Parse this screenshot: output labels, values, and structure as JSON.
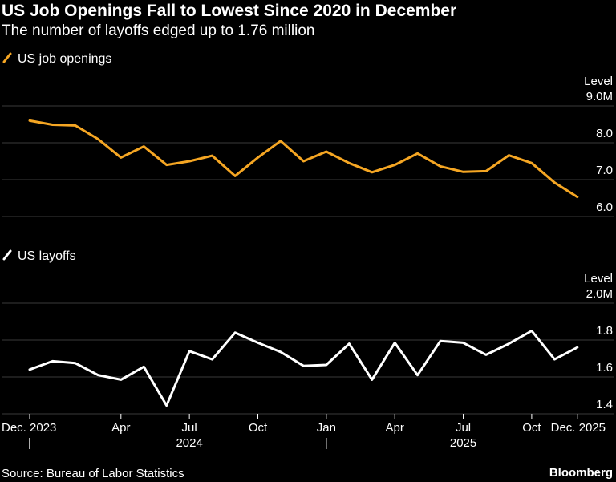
{
  "title": "US Job Openings Fall to Lowest Since 2020 in December",
  "subtitle": "The number of layoffs edged up to 1.76 million",
  "source": "Source: Bureau of Labor Statistics",
  "brand": "Bloomberg",
  "x_axis": {
    "tick_labels": [
      "Dec. 2023",
      "Apr",
      "Jul",
      "Oct",
      "Jan",
      "Apr",
      "Jul",
      "Oct",
      "Dec. 2025"
    ],
    "tick_month_index": [
      0,
      4,
      7,
      10,
      13,
      16,
      19,
      22,
      24
    ],
    "year_labels": [
      "2024",
      "2025"
    ],
    "year_label_month_index": [
      7,
      19
    ],
    "separator_label": "|"
  },
  "colors": {
    "openings": "#f5a623",
    "layoffs": "#ffffff",
    "grid": "#3a3a3a"
  },
  "chart_data": [
    {
      "type": "line",
      "legend": "US job openings",
      "axis_title": "Level",
      "ylim": [
        6.0,
        9.0
      ],
      "y_ticks": [
        9.0,
        8.0,
        7.0,
        6.0
      ],
      "y_tick_labels": [
        "9.0M",
        "8.0",
        "7.0",
        "6.0"
      ],
      "x": [
        "Dec 2023",
        "Jan 2024",
        "Feb 2024",
        "Mar 2024",
        "Apr 2024",
        "May 2024",
        "Jun 2024",
        "Jul 2024",
        "Aug 2024",
        "Sep 2024",
        "Oct 2024",
        "Nov 2024",
        "Dec 2024",
        "Jan 2025",
        "Feb 2025",
        "Mar 2025",
        "Apr 2025",
        "May 2025",
        "Jun 2025",
        "Jul 2025",
        "Aug 2025",
        "Sep 2025",
        "Oct 2025",
        "Nov 2025",
        "Dec 2025"
      ],
      "series": [
        {
          "values": [
            8.6,
            8.49,
            8.47,
            8.1,
            7.6,
            7.9,
            7.4,
            7.5,
            7.65,
            7.1,
            7.6,
            8.05,
            7.5,
            7.76,
            7.45,
            7.2,
            7.4,
            7.71,
            7.36,
            7.21,
            7.23,
            7.66,
            7.45,
            6.92,
            6.53
          ]
        }
      ]
    },
    {
      "type": "line",
      "legend": "US layoffs",
      "axis_title": "Level",
      "ylim": [
        1.4,
        2.0
      ],
      "y_ticks": [
        2.0,
        1.8,
        1.6,
        1.4
      ],
      "y_tick_labels": [
        "2.0M",
        "1.8",
        "1.6",
        "1.4"
      ],
      "x": [
        "Dec 2023",
        "Jan 2024",
        "Feb 2024",
        "Mar 2024",
        "Apr 2024",
        "May 2024",
        "Jun 2024",
        "Jul 2024",
        "Aug 2024",
        "Sep 2024",
        "Oct 2024",
        "Nov 2024",
        "Dec 2024",
        "Jan 2025",
        "Feb 2025",
        "Mar 2025",
        "Apr 2025",
        "May 2025",
        "Jun 2025",
        "Jul 2025",
        "Aug 2025",
        "Sep 2025",
        "Oct 2025",
        "Nov 2025",
        "Dec 2025"
      ],
      "series": [
        {
          "values": [
            1.64,
            1.685,
            1.675,
            1.61,
            1.585,
            1.655,
            1.445,
            1.74,
            1.695,
            1.84,
            1.785,
            1.735,
            1.66,
            1.665,
            1.78,
            1.585,
            1.785,
            1.61,
            1.795,
            1.785,
            1.72,
            1.78,
            1.85,
            1.695,
            1.76
          ]
        }
      ]
    }
  ]
}
